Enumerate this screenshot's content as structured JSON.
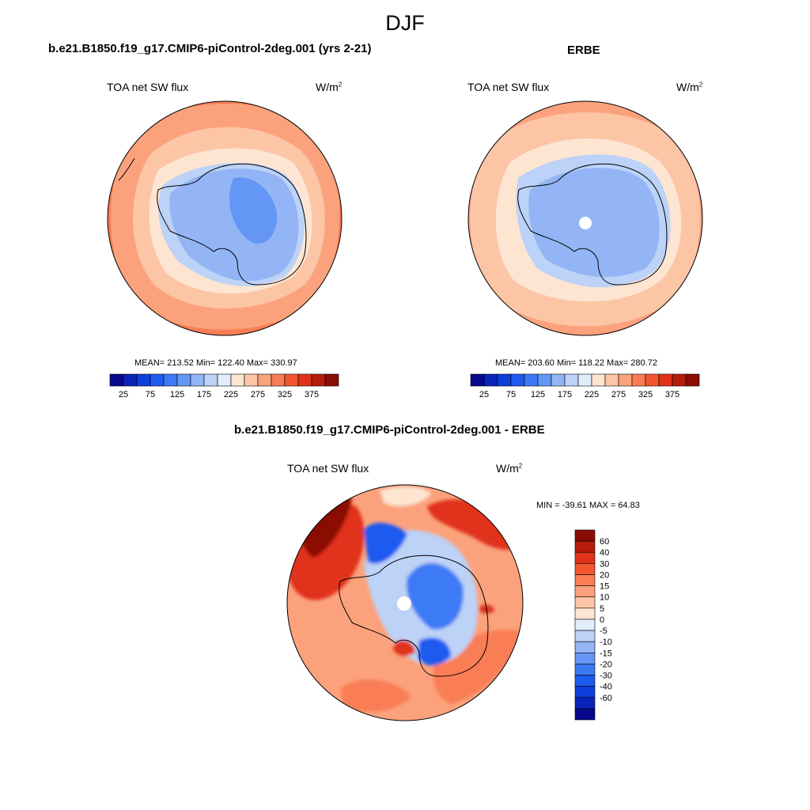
{
  "figure": {
    "title": "DJF",
    "palette": [
      "#08088c",
      "#0a23b8",
      "#0d3fd9",
      "#1e5af0",
      "#3c7af5",
      "#6496f5",
      "#93b5f5",
      "#bcd2f7",
      "#e3ecfa",
      "#fde5d2",
      "#fcc5a6",
      "#fba27c",
      "#f97d55",
      "#f4562f",
      "#e1331a",
      "#b81c0c",
      "#8a0d05"
    ]
  },
  "panels": [
    {
      "id": "model",
      "case": "b.e21.B1850.f19_g17.CMIP6-piControl-2deg.001 (yrs 2-21)",
      "field": "TOA net SW flux",
      "units_base": "W/m",
      "units_exp": "2",
      "stats": "MEAN= 213.52  Min= 122.40  Max= 330.97"
    },
    {
      "id": "obs",
      "case": "ERBE",
      "field": "TOA net SW flux",
      "units_base": "W/m",
      "units_exp": "2",
      "stats": "MEAN= 203.60  Min= 118.22  Max= 280.72"
    },
    {
      "id": "diff",
      "case": "b.e21.B1850.f19_g17.CMIP6-piControl-2deg.001 - ERBE",
      "field": "TOA net SW flux",
      "units_base": "W/m",
      "units_exp": "2",
      "stats": "MIN = -39.61 MAX =  64.83"
    }
  ],
  "colorbars": {
    "field_labels": [
      "25",
      "75",
      "125",
      "175",
      "225",
      "275",
      "325",
      "375"
    ],
    "diff_labels": [
      "60",
      "40",
      "30",
      "20",
      "15",
      "10",
      "5",
      "0",
      "-5",
      "-10",
      "-15",
      "-20",
      "-30",
      "-40",
      "-60"
    ]
  },
  "chart_data": {
    "type": "heatmap",
    "projection": "south polar stereographic",
    "season": "DJF",
    "variable": "TOA net SW flux",
    "units": "W/m2",
    "maps": [
      {
        "name": "b.e21.B1850.f19_g17.CMIP6-piControl-2deg.001 (yrs 2-21)",
        "mean": 213.52,
        "min": 122.4,
        "max": 330.97,
        "levels": [
          25,
          50,
          75,
          100,
          125,
          150,
          175,
          200,
          225,
          250,
          275,
          300,
          325,
          350,
          375
        ]
      },
      {
        "name": "ERBE",
        "mean": 203.6,
        "min": 118.22,
        "max": 280.72,
        "levels": [
          25,
          50,
          75,
          100,
          125,
          150,
          175,
          200,
          225,
          250,
          275,
          300,
          325,
          350,
          375
        ]
      },
      {
        "name": "b.e21.B1850.f19_g17.CMIP6-piControl-2deg.001 - ERBE",
        "min": -39.61,
        "max": 64.83,
        "levels": [
          -60,
          -40,
          -30,
          -20,
          -15,
          -10,
          -5,
          0,
          5,
          10,
          15,
          20,
          30,
          40,
          60
        ]
      }
    ]
  }
}
